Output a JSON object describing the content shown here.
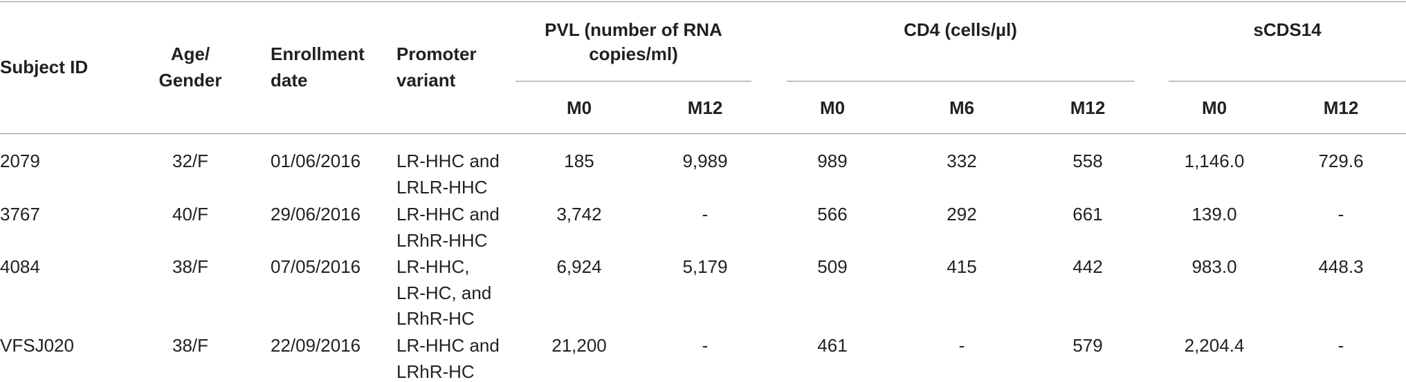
{
  "table": {
    "header": {
      "columns": [
        [
          "Subject ID"
        ],
        [
          "Age/",
          "Gender"
        ],
        [
          "Enrollment",
          "date"
        ],
        [
          "Promoter",
          "variant"
        ]
      ],
      "groups": [
        {
          "title": [
            "PVL (number of RNA",
            "copies/ml)"
          ],
          "columns": [
            "M0",
            "M12"
          ]
        },
        {
          "title": [
            "CD4 (cells/µl)"
          ],
          "columns": [
            "M0",
            "M6",
            "M12"
          ]
        },
        {
          "title": [
            "sCDS14"
          ],
          "columns": [
            "M0",
            "M12"
          ]
        }
      ]
    },
    "rows": [
      [
        [
          "2079"
        ],
        [
          "32/F"
        ],
        [
          "01/06/2016"
        ],
        [
          "LR-HHC and",
          "LRLR-HHC"
        ],
        [
          "185"
        ],
        [
          "9,989"
        ],
        [
          "989"
        ],
        [
          "332"
        ],
        [
          "558"
        ],
        [
          "1,146.0"
        ],
        [
          "729.6"
        ]
      ],
      [
        [
          "3767"
        ],
        [
          "40/F"
        ],
        [
          "29/06/2016"
        ],
        [
          "LR-HHC and",
          "LRhR-HHC"
        ],
        [
          "3,742"
        ],
        [
          "-"
        ],
        [
          "566"
        ],
        [
          "292"
        ],
        [
          "661"
        ],
        [
          "139.0"
        ],
        [
          "-"
        ]
      ],
      [
        [
          "4084"
        ],
        [
          "38/F"
        ],
        [
          "07/05/2016"
        ],
        [
          "LR-HHC,",
          "LR-HC, and",
          "LRhR-HC"
        ],
        [
          "6,924"
        ],
        [
          "5,179"
        ],
        [
          "509"
        ],
        [
          "415"
        ],
        [
          "442"
        ],
        [
          "983.0"
        ],
        [
          "448.3"
        ]
      ],
      [
        [
          "VFSJ020"
        ],
        [
          "38/F"
        ],
        [
          "22/09/2016"
        ],
        [
          "LR-HHC and",
          "LRhR-HC"
        ],
        [
          "21,200"
        ],
        [
          "-"
        ],
        [
          "461"
        ],
        [
          "-"
        ],
        [
          "579"
        ],
        [
          "2,204.4"
        ],
        [
          "-"
        ]
      ]
    ]
  }
}
